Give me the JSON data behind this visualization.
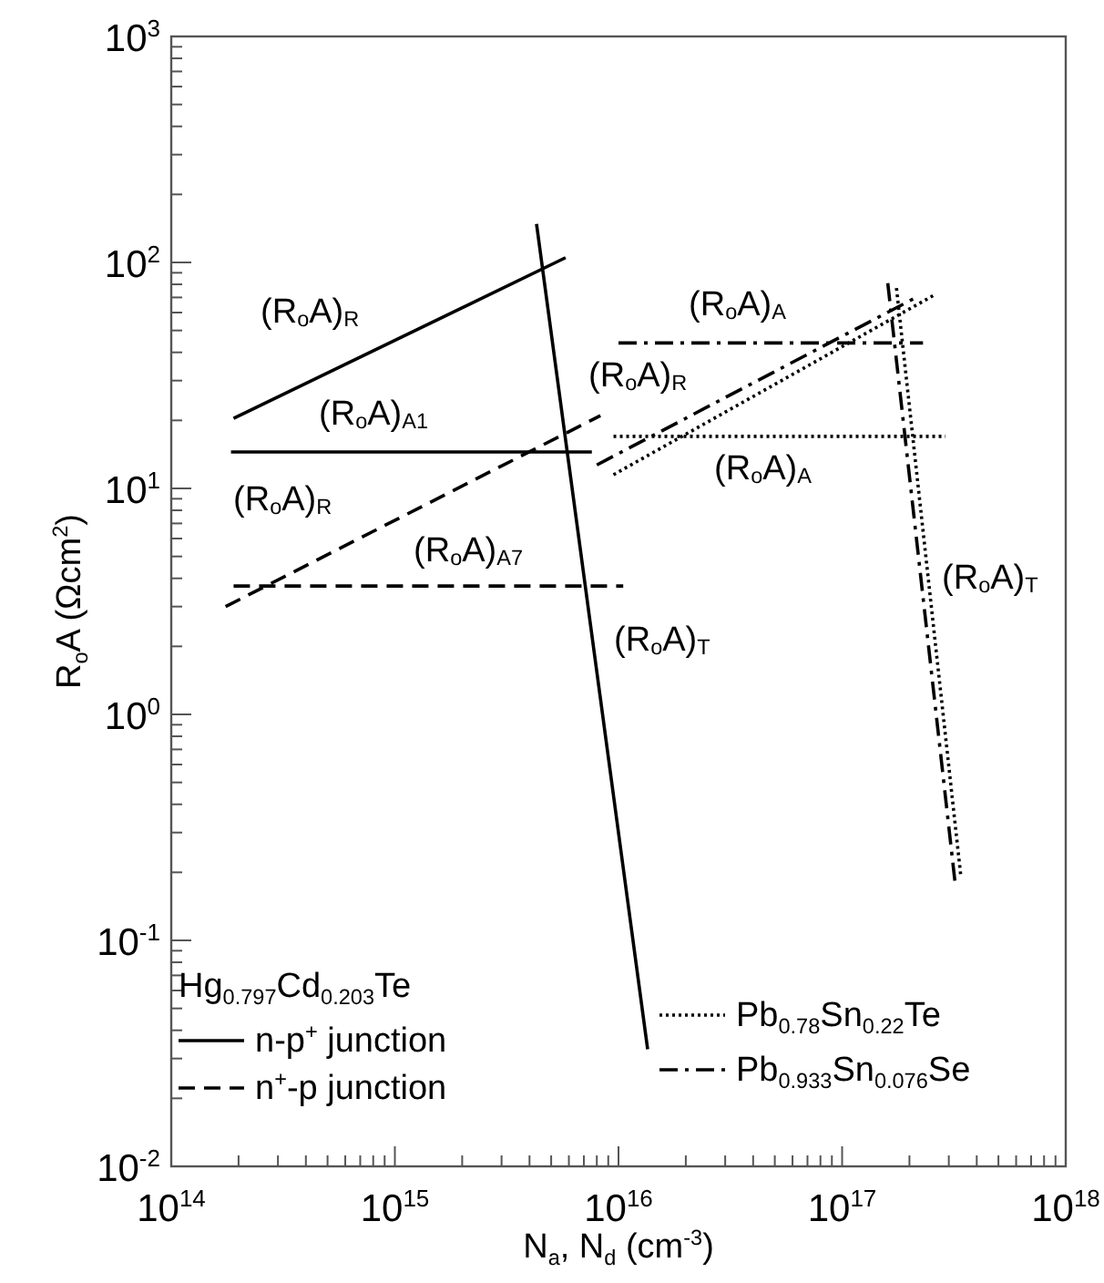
{
  "chart_data": {
    "type": "line",
    "xlabel": "N$_{a}$, N$_{d}$ (cm$^{-3}$)",
    "ylabel": "R$_{o}$A (Ωcm$^{2}$)",
    "log": "xy",
    "xlim": [
      100000000000000.0,
      1e+18
    ],
    "ylim": [
      0.01,
      1000
    ],
    "xticks": [
      {
        "value": 100000000000000.0,
        "label": "10$^{14}$"
      },
      {
        "value": 1000000000000000.0,
        "label": "10$^{15}$"
      },
      {
        "value": 1e+16,
        "label": "10$^{16}$"
      },
      {
        "value": 1e+17,
        "label": "10$^{17}$"
      },
      {
        "value": 1e+18,
        "label": "10$^{18}$"
      }
    ],
    "yticks": [
      {
        "value": 0.01,
        "label": "10$^{-2}$"
      },
      {
        "value": 0.1,
        "label": "10$^{-1}$"
      },
      {
        "value": 1,
        "label": "10$^{0}$"
      },
      {
        "value": 10,
        "label": "10$^{1}$"
      },
      {
        "value": 100,
        "label": "10$^{2}$"
      },
      {
        "value": 1000,
        "label": "10$^{3}$"
      }
    ],
    "grid": false,
    "legend": "bottom",
    "legend_title": "Hg$_{0.797}$Cd$_{0.203}$Te",
    "marker": "none",
    "series": [
      {
        "name": "n-p$^{+}$ junction",
        "color": "#000000",
        "line_style": "solid",
        "x": [
          190000000000000.0,
          5800000000000000.0,
          null,
          185000000000000.0,
          7600000000000000.0,
          null,
          4300000000000000.0,
          1.35e+16
        ],
        "values": [
          20.4,
          105,
          null,
          14.5,
          14.5,
          null,
          148,
          0.033
        ]
      },
      {
        "name": "n$^{+}$-p junction",
        "color": "#000000",
        "line_style": "dashed",
        "x": [
          175000000000000.0,
          8300000000000000.0,
          null,
          190000000000000.0,
          1.05e+16
        ],
        "values": [
          3.0,
          21,
          null,
          3.7,
          3.7
        ]
      },
      {
        "name": "Pb$_{0.78}$Sn$_{0.22}$Te",
        "color": "#000000",
        "line_style": "dotted",
        "x": [
          9500000000000000.0,
          2.6e+17,
          null,
          9500000000000000.0,
          2.9e+17,
          null,
          1.75e+17,
          3.4e+17
        ],
        "values": [
          11.5,
          72,
          null,
          17,
          17,
          null,
          77,
          0.19
        ]
      },
      {
        "name": "Pb$_{0.933}$Sn$_{0.076}$Se",
        "color": "#000000",
        "line_style": "dashdot",
        "x": [
          8000000000000000.0,
          2.2e+17,
          null,
          1e+16,
          2.3e+17,
          null,
          1.6e+17,
          3.2e+17
        ],
        "values": [
          12.7,
          71,
          null,
          44,
          44,
          null,
          81,
          0.18
        ]
      }
    ],
    "annotations": [
      "(R$_{o}$A)$_{R}$",
      "(R$_{o}$A)$_{A1}$",
      "(R$_{o}$A)$_{R}$",
      "(R$_{o}$A)$_{A7}$",
      "(R$_{o}$A)$_{T}$",
      "(R$_{o}$A)$_{A}$",
      "(R$_{o}$A)$_{R}$",
      "(R$_{o}$A)$_{A}$",
      "(R$_{o}$A)$_{T}$"
    ]
  }
}
